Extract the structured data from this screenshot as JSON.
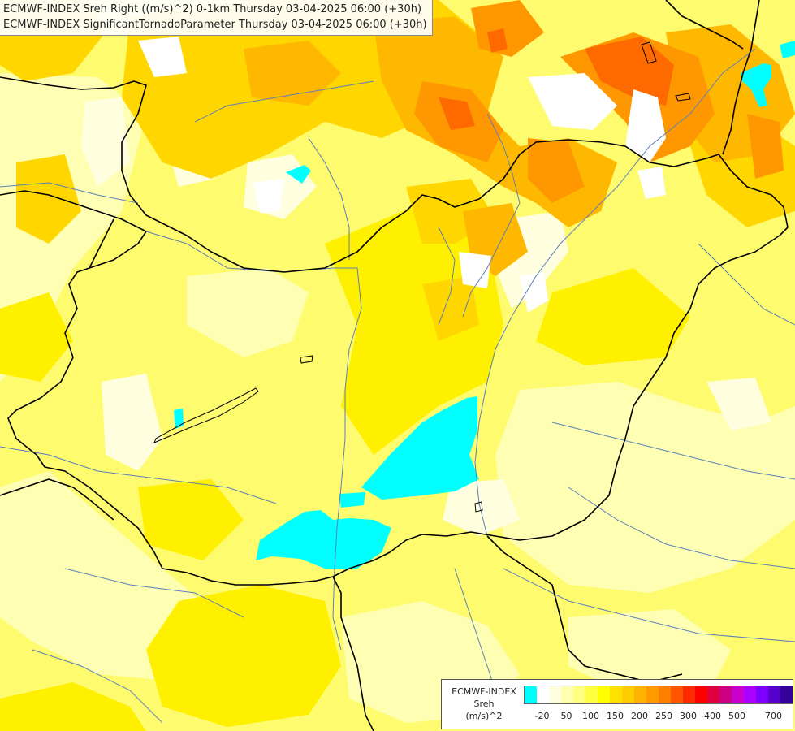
{
  "title": {
    "line1": "ECMWF-INDEX Sreh Right ((m/s)^2) 0-1km Thursday 03-04-2025 06:00 (+30h)",
    "line2": "ECMWF-INDEX SignificantTornadoParameter Thursday 03-04-2025 06:00 (+30h)"
  },
  "legend": {
    "line1": "ECMWF-INDEX",
    "line2": "Sreh",
    "line3": "(m/s)^2",
    "colors": [
      "#00ffff",
      "#ffffff",
      "#ffffe0",
      "#ffffb0",
      "#ffff80",
      "#ffff40",
      "#ffff00",
      "#ffe100",
      "#ffcc00",
      "#ffb300",
      "#ff9900",
      "#ff7f00",
      "#ff5500",
      "#ff2a00",
      "#ff0000",
      "#e00040",
      "#cc0080",
      "#cc00cc",
      "#aa00ff",
      "#7f00ff",
      "#5500cc",
      "#330099"
    ],
    "ticks": [
      "-20",
      "50",
      "100",
      "150",
      "200",
      "250",
      "300",
      "400",
      "500",
      "700"
    ]
  },
  "palette": {
    "base": "#fffb6e",
    "light": "#ffffb4",
    "pale": "#ffffe0",
    "yellow": "#fff000",
    "gold": "#ffd600",
    "amber": "#ffb800",
    "orange": "#ff9800",
    "red_orange": "#ff6a00",
    "cyan": "#00ffff",
    "border": "#000000",
    "river": "#5a7fb8"
  }
}
